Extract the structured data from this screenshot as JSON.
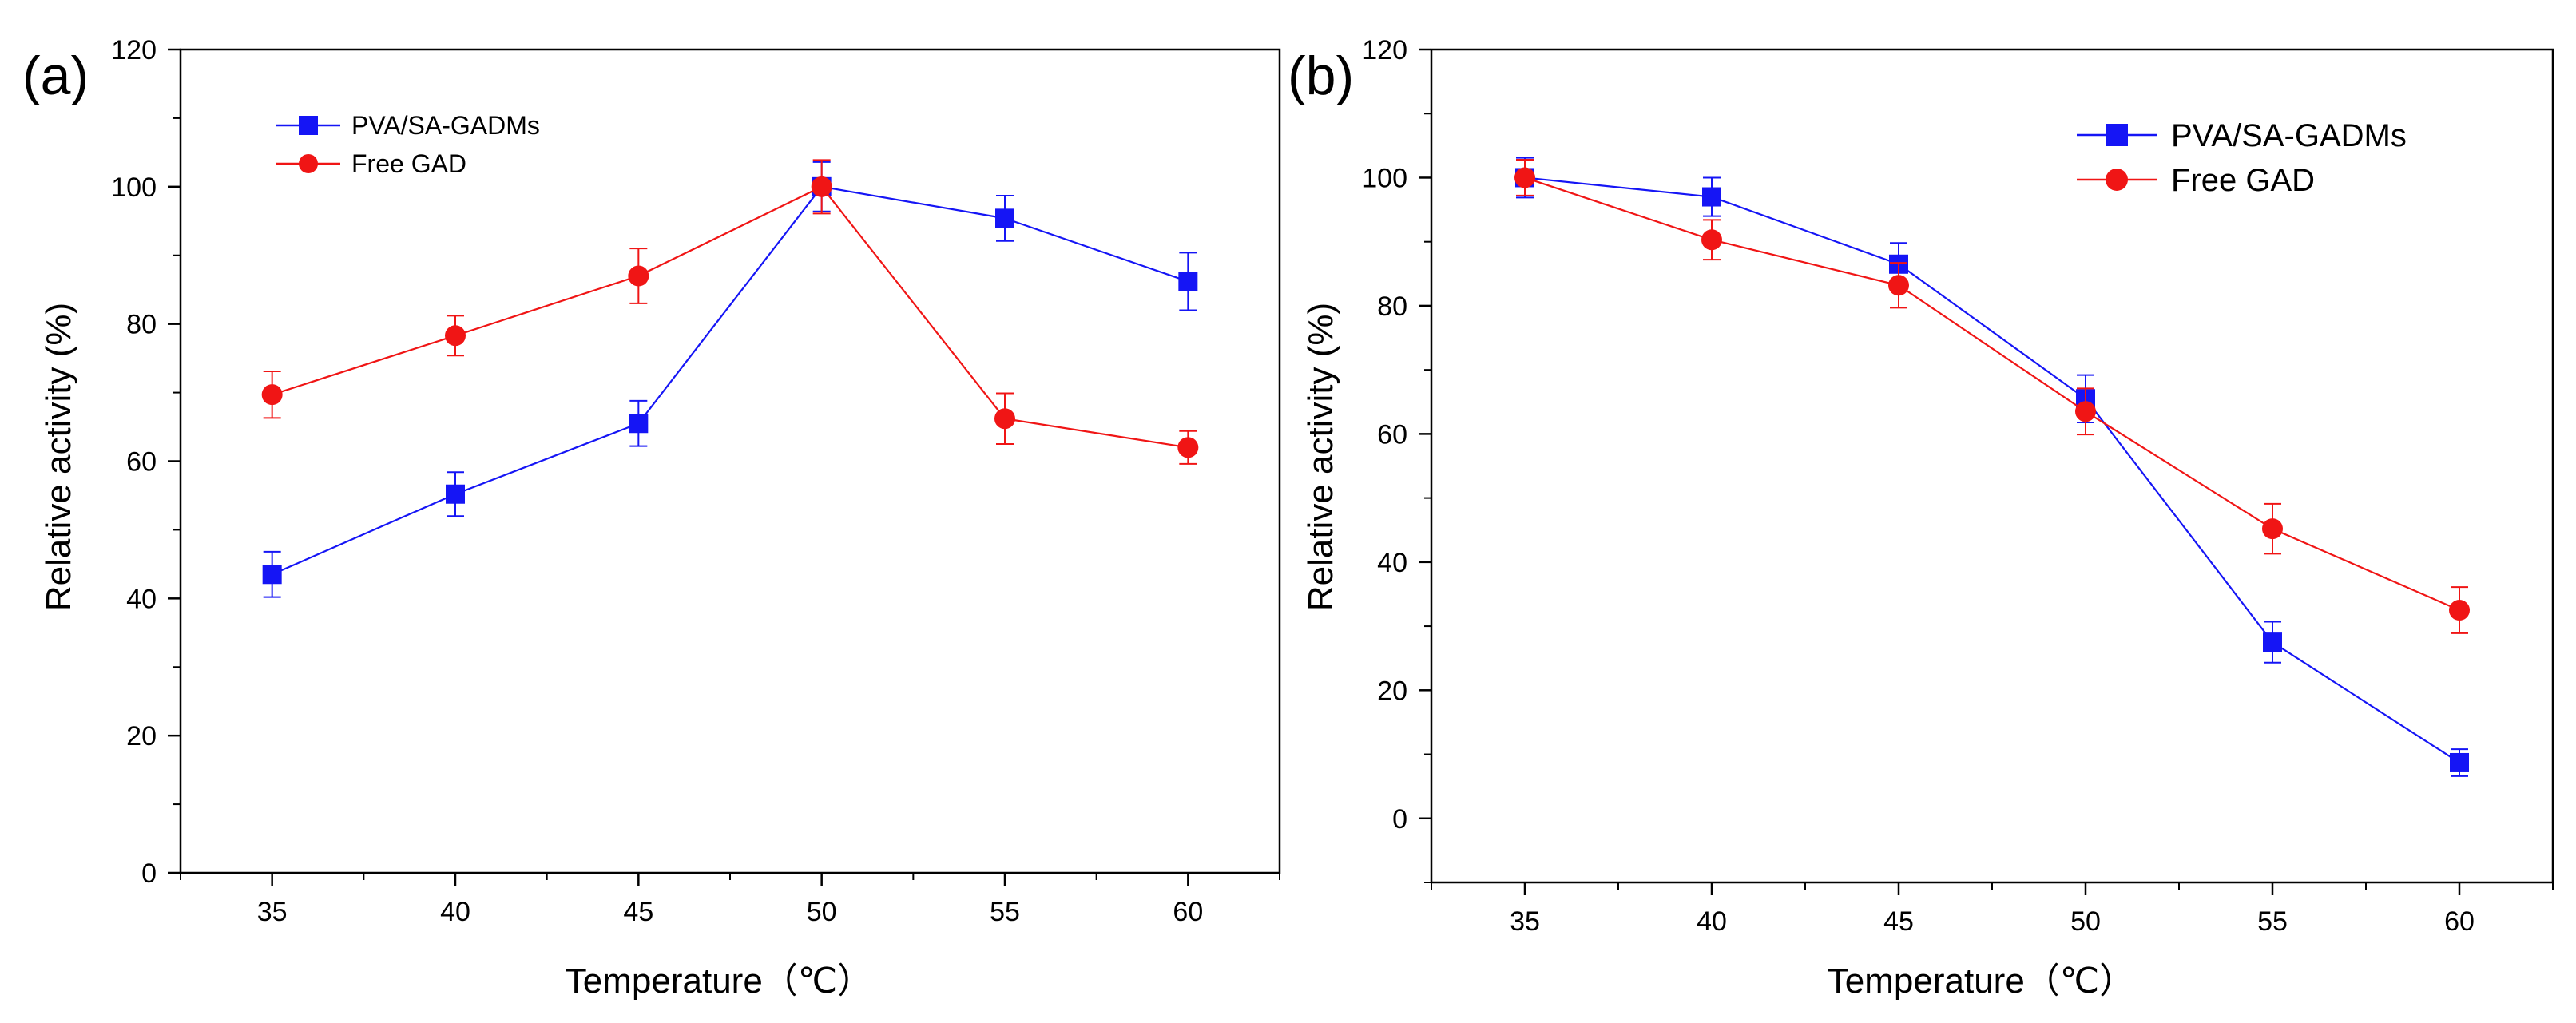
{
  "colors": {
    "series_a": "#1515f5",
    "series_b": "#f01515",
    "axis": "#000000",
    "background": "#ffffff"
  },
  "chart_data": [
    {
      "panel_label": "(a)",
      "type": "line",
      "title": "",
      "xlabel": "Temperature（℃）",
      "ylabel": "Relative activity (%)",
      "x": [
        35,
        40,
        45,
        50,
        55,
        60
      ],
      "x_ticks": [
        "35",
        "40",
        "45",
        "50",
        "55",
        "60"
      ],
      "xlim": [
        32.5,
        62.5
      ],
      "ylim": [
        0,
        120
      ],
      "y_ticks": [
        "0",
        "20",
        "40",
        "60",
        "80",
        "100",
        "120"
      ],
      "legend": "top-left",
      "grid": false,
      "series": [
        {
          "name": "PVA/SA-GADMs",
          "marker": "square",
          "color": "#1515f5",
          "values": [
            43.5,
            55.2,
            65.5,
            100.0,
            95.4,
            86.2
          ],
          "errors": [
            3.3,
            3.2,
            3.3,
            3.6,
            3.3,
            4.2
          ]
        },
        {
          "name": "Free GAD",
          "marker": "circle",
          "color": "#f01515",
          "values": [
            69.7,
            78.3,
            87.0,
            100.0,
            66.2,
            62.0
          ],
          "errors": [
            3.4,
            2.9,
            4.0,
            3.9,
            3.7,
            2.4
          ]
        }
      ]
    },
    {
      "panel_label": "(b)",
      "type": "line",
      "title": "",
      "xlabel": "Temperature（℃）",
      "ylabel": "Relative activity (%)",
      "x": [
        35,
        40,
        45,
        50,
        55,
        60
      ],
      "x_ticks": [
        "35",
        "40",
        "45",
        "50",
        "55",
        "60"
      ],
      "xlim": [
        32.5,
        62.5
      ],
      "ylim": [
        -10,
        120
      ],
      "y_ticks": [
        "0",
        "20",
        "40",
        "60",
        "80",
        "100",
        "120"
      ],
      "legend": "top-right",
      "grid": false,
      "series": [
        {
          "name": "PVA/SA-GADMs",
          "marker": "square",
          "color": "#1515f5",
          "values": [
            100.0,
            97.0,
            86.5,
            65.5,
            27.5,
            8.7
          ],
          "errors": [
            3.1,
            3.0,
            3.3,
            3.7,
            3.2,
            2.1
          ]
        },
        {
          "name": "Free GAD",
          "marker": "circle",
          "color": "#f01515",
          "values": [
            100.0,
            90.3,
            83.2,
            63.5,
            45.2,
            32.5
          ],
          "errors": [
            2.8,
            3.1,
            3.5,
            3.6,
            3.9,
            3.6
          ]
        }
      ]
    }
  ]
}
